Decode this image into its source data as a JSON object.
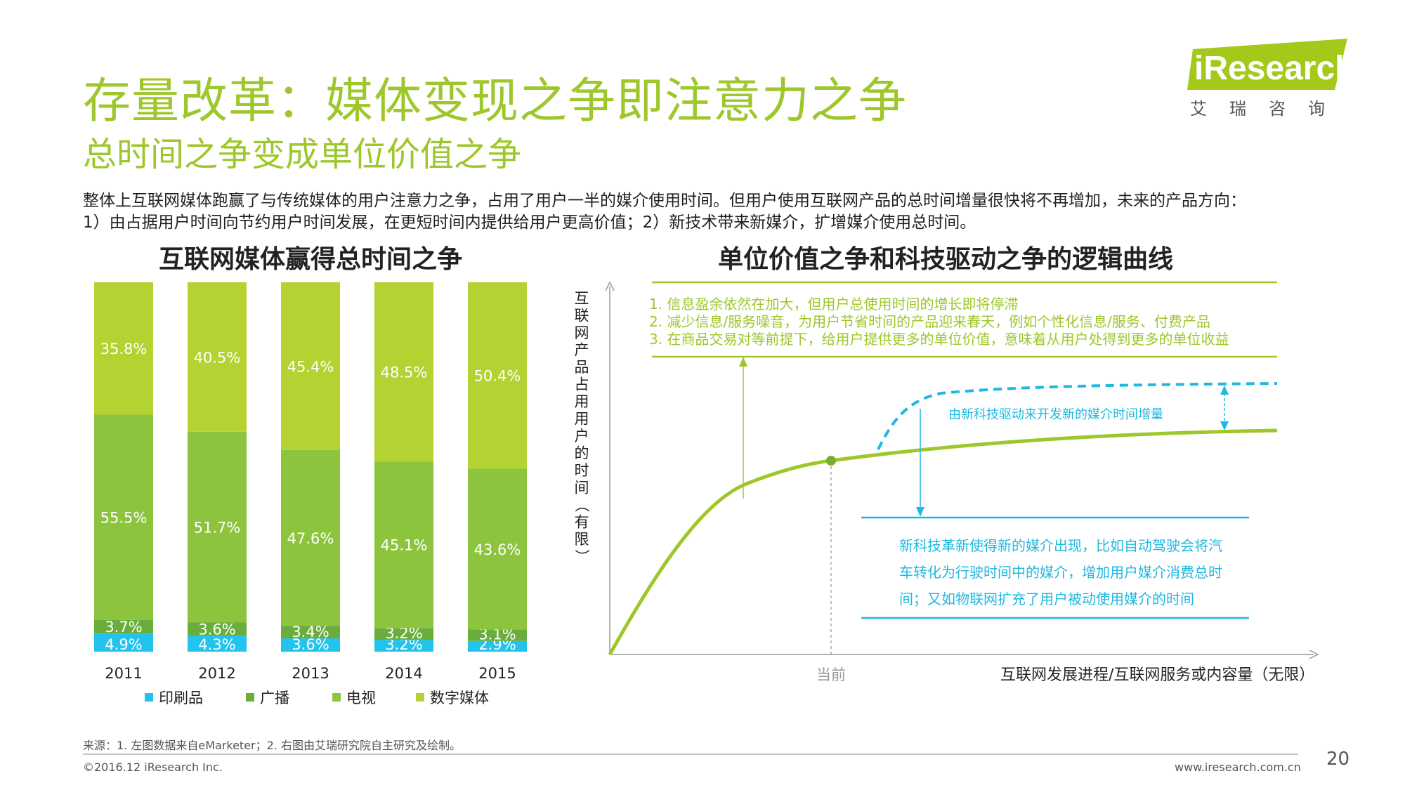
{
  "title": "存量改革：媒体变现之争即注意力之争",
  "subtitle": "总时间之争变成单位价值之争",
  "intro": {
    "line1": "整体上互联网媒体跑赢了与传统媒体的用户注意力之争，占用了用户一半的媒介使用时间。但用户使用互联网产品的总时间增量很快将不再增加，未来的产品方向：",
    "line2": "1）由占据用户时间向节约用户时间发展，在更短时间内提供给用户更高价值；2）新技术带来新媒介，扩增媒介使用总时间。"
  },
  "logo": {
    "word": "iResearch",
    "cn": "艾瑞咨询",
    "color": "#a4c91b"
  },
  "left_chart_title": "互联网媒体赢得总时间之争",
  "right_chart_title": "单位价值之争和科技驱动之争的逻辑曲线",
  "colors": {
    "print": "#22c3ec",
    "radio": "#6aad3c",
    "tv": "#8cc43e",
    "digital": "#b4d232",
    "accent": "#9dc72a",
    "cyan": "#1fb8e0",
    "gray": "#999999"
  },
  "chart_data": [
    {
      "type": "bar",
      "stacked": true,
      "title": "互联网媒体赢得总时间之争",
      "categories": [
        "2011",
        "2012",
        "2013",
        "2014",
        "2015"
      ],
      "series": [
        {
          "name": "印刷品",
          "values": [
            4.9,
            4.3,
            3.6,
            3.2,
            2.9
          ],
          "labels": [
            "4.9%",
            "4.3%",
            "3.6%",
            "3.2%",
            "2.9%"
          ]
        },
        {
          "name": "广播",
          "values": [
            3.7,
            3.6,
            3.4,
            3.2,
            3.1
          ],
          "labels": [
            "3.7%",
            "3.6%",
            "3.4%",
            "3.2%",
            "3.1%"
          ]
        },
        {
          "name": "电视",
          "values": [
            55.5,
            51.7,
            47.6,
            45.1,
            43.6
          ],
          "labels": [
            "55.5%",
            "51.7%",
            "47.6%",
            "45.1%",
            "43.6%"
          ]
        },
        {
          "name": "数字媒体",
          "values": [
            35.8,
            40.5,
            45.4,
            48.5,
            50.4
          ],
          "labels": [
            "35.8%",
            "40.5%",
            "45.4%",
            "48.5%",
            "50.4%"
          ]
        }
      ],
      "ylim": [
        0,
        100
      ]
    },
    {
      "type": "line",
      "title": "单位价值之争和科技驱动之争的逻辑曲线",
      "ylabel": "互联网产品占用用户的时间（有限）",
      "xlabel": "互联网发展进程/互联网服务或内容量（无限）",
      "x_marker": "当前",
      "top_notes": [
        "1.   信息盈余依然在加大，但用户总使用时间的增长即将停滞",
        "2.   减少信息/服务噪音，为用户节省时间的产品迎来春天，例如个性化信息/服务、付费产品",
        "3.   在商品交易对等前提下，给用户提供更多的单位价值，意味着从用户处得到更多的单位收益"
      ],
      "dashed_label": "由新科技驱动来开发新的媒介时间增量",
      "bottom_note": [
        "新科技革新使得新的媒介出现，比如自动驾驶会将汽",
        "车转化为行驶时间中的媒介，增加用户媒介消费总时",
        "间；又如物联网扩充了用户被动使用媒介的时间"
      ]
    }
  ],
  "source": "来源：1. 左图数据来自eMarketer；2. 右图由艾瑞研究院自主研究及绘制。",
  "copyright": "©2016.12 iResearch Inc.",
  "website": "www.iresearch.com.cn",
  "page_number": "20"
}
